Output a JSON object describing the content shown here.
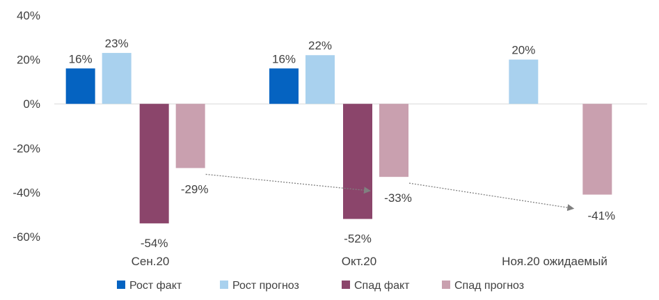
{
  "chart_data": {
    "type": "bar",
    "title": "",
    "xlabel": "",
    "ylabel": "",
    "categories": [
      "Сен.20",
      "Окт.20",
      "Ноя.20 ожидаемый"
    ],
    "ylim": [
      -60,
      40
    ],
    "yticks": [
      40,
      20,
      0,
      -20,
      -40,
      -60
    ],
    "ytick_labels": [
      "40%",
      "20%",
      "0%",
      "-20%",
      "-40%",
      "-60%"
    ],
    "grid": false,
    "legend_position": "bottom",
    "series": [
      {
        "name": "Рост факт",
        "color": "#0563C1",
        "values": [
          16,
          16,
          null
        ],
        "labels": [
          "16%",
          "16%",
          ""
        ]
      },
      {
        "name": "Рост прогноз",
        "color": "#A9D1EE",
        "values": [
          23,
          22,
          20
        ],
        "labels": [
          "23%",
          "22%",
          "20%"
        ]
      },
      {
        "name": "Спад факт",
        "color": "#8B456B",
        "values": [
          -54,
          -52,
          null
        ],
        "labels": [
          "-54%",
          "-52%",
          ""
        ]
      },
      {
        "name": "Спад прогноз",
        "color": "#C9A0AF",
        "values": [
          -29,
          -33,
          -41
        ],
        "labels": [
          "-29%",
          "-33%",
          "-41%"
        ]
      }
    ],
    "annotations": [
      {
        "type": "dotted-arrow",
        "from_category": 0,
        "to_category": 1,
        "from_value": -29,
        "to_value": -33
      },
      {
        "type": "dotted-arrow",
        "from_category": 1,
        "to_category": 2,
        "from_value": -33,
        "to_value": -41
      }
    ]
  }
}
